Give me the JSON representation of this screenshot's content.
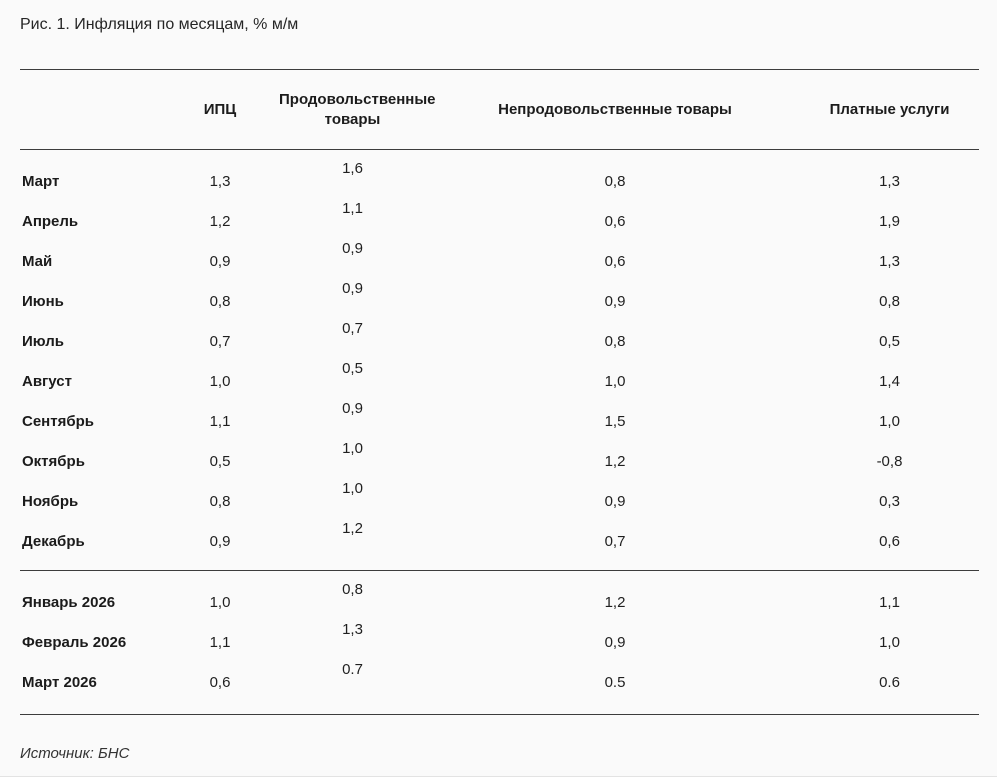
{
  "page": {
    "title": "Рис. 1. Инфляция по месяцам, % м/м",
    "source_note": "Источник: БНС"
  },
  "table": {
    "columns": [
      "",
      "ИПЦ",
      "Продовольственные товары",
      "Непродовольственные товары",
      "Платные услуги"
    ],
    "sections": [
      {
        "name": "months-2025",
        "rows": [
          {
            "month": "Март",
            "ipc": "1,3",
            "food": "1,6",
            "nonfood": "0,8",
            "services": "1,3"
          },
          {
            "month": "Апрель",
            "ipc": "1,2",
            "food": "1,1",
            "nonfood": "0,6",
            "services": "1,9"
          },
          {
            "month": "Май",
            "ipc": "0,9",
            "food": "0,9",
            "nonfood": "0,6",
            "services": "1,3"
          },
          {
            "month": "Июнь",
            "ipc": "0,8",
            "food": "0,9",
            "nonfood": "0,9",
            "services": "0,8"
          },
          {
            "month": "Июль",
            "ipc": "0,7",
            "food": "0,7",
            "nonfood": "0,8",
            "services": "0,5"
          },
          {
            "month": "Август",
            "ipc": "1,0",
            "food": "0,5",
            "nonfood": "1,0",
            "services": "1,4"
          },
          {
            "month": "Сентябрь",
            "ipc": "1,1",
            "food": "0,9",
            "nonfood": "1,5",
            "services": "1,0"
          },
          {
            "month": "Октябрь",
            "ipc": "0,5",
            "food": "1,0",
            "nonfood": "1,2",
            "services": "-0,8"
          },
          {
            "month": "Ноябрь",
            "ipc": "0,8",
            "food": "1,0",
            "nonfood": "0,9",
            "services": "0,3"
          },
          {
            "month": "Декабрь",
            "ipc": "0,9",
            "food": "1,2",
            "nonfood": "0,7",
            "services": "0,6"
          }
        ]
      },
      {
        "name": "months-2026",
        "rows": [
          {
            "month": "Январь 2026",
            "ipc": "1,0",
            "food": "0,8",
            "nonfood": "1,2",
            "services": "1,1"
          },
          {
            "month": "Февраль 2026",
            "ipc": "1,1",
            "food": "1,3",
            "nonfood": "0,9",
            "services": "1,0"
          },
          {
            "month": "Март 2026",
            "ipc": "0,6",
            "food": "0.7",
            "nonfood": "0.5",
            "services": "0.6"
          }
        ]
      }
    ]
  },
  "chart_data": {
    "type": "table",
    "title": "Рис. 1. Инфляция по месяцам, % м/м",
    "columns": [
      "ИПЦ",
      "Продовольственные товары",
      "Непродовольственные товары",
      "Платные услуги"
    ],
    "categories": [
      "Март",
      "Апрель",
      "Май",
      "Июнь",
      "Июль",
      "Август",
      "Сентябрь",
      "Октябрь",
      "Ноябрь",
      "Декабрь",
      "Январь 2026",
      "Февраль 2026",
      "Март 2026"
    ],
    "series": [
      {
        "name": "ИПЦ",
        "values": [
          1.3,
          1.2,
          0.9,
          0.8,
          0.7,
          1.0,
          1.1,
          0.5,
          0.8,
          0.9,
          1.0,
          1.1,
          0.6
        ]
      },
      {
        "name": "Продовольственные товары",
        "values": [
          1.6,
          1.1,
          0.9,
          0.9,
          0.7,
          0.5,
          0.9,
          1.0,
          1.0,
          1.2,
          0.8,
          1.3,
          0.7
        ]
      },
      {
        "name": "Непродовольственные товары",
        "values": [
          0.8,
          0.6,
          0.6,
          0.9,
          0.8,
          1.0,
          1.5,
          1.2,
          0.9,
          0.7,
          1.2,
          0.9,
          0.5
        ]
      },
      {
        "name": "Платные услуги",
        "values": [
          1.3,
          1.9,
          1.3,
          0.8,
          0.5,
          1.4,
          1.0,
          -0.8,
          0.3,
          0.6,
          1.1,
          1.0,
          0.6
        ]
      }
    ],
    "unit": "% м/м",
    "source": "Источник: БНС"
  }
}
